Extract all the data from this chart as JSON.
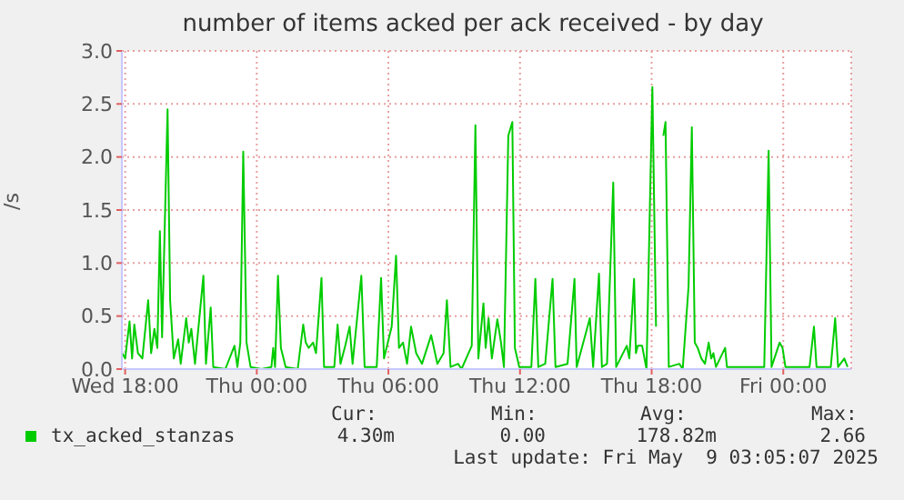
{
  "chart_data": {
    "type": "line",
    "title": "number of items acked per ack received - by day",
    "ylabel": "/s",
    "xlim": [
      "2025-05-07T17:51",
      "2025-05-09T03:06"
    ],
    "xticks": [
      {
        "value": "2025-05-07T18:00",
        "label": "Wed 18:00"
      },
      {
        "value": "2025-05-08T00:00",
        "label": "Thu 00:00"
      },
      {
        "value": "2025-05-08T06:00",
        "label": "Thu 06:00"
      },
      {
        "value": "2025-05-08T12:00",
        "label": "Thu 12:00"
      },
      {
        "value": "2025-05-08T18:00",
        "label": "Thu 18:00"
      },
      {
        "value": "2025-05-09T00:00",
        "label": "Fri 00:00"
      }
    ],
    "ylim": [
      0,
      3
    ],
    "yticks": [
      {
        "value": 0,
        "label": "0.0"
      },
      {
        "value": 0.5,
        "label": "0.5"
      },
      {
        "value": 1,
        "label": "1.0"
      },
      {
        "value": 1.5,
        "label": "1.5"
      },
      {
        "value": 2,
        "label": "2.0"
      },
      {
        "value": 2.5,
        "label": "2.5"
      },
      {
        "value": 3,
        "label": "3.0"
      }
    ],
    "grid": true,
    "legend": "bottom",
    "marker": "none",
    "line_style": "solid",
    "x": [
      "2025-05-07T17:52",
      "2025-05-07T18:00",
      "2025-05-07T18:12",
      "2025-05-07T18:19",
      "2025-05-07T18:25",
      "2025-05-07T18:35",
      "2025-05-07T18:47",
      "2025-05-07T19:03",
      "2025-05-07T19:11",
      "2025-05-07T19:20",
      "2025-05-07T19:28",
      "2025-05-07T19:35",
      "2025-05-07T19:41",
      "2025-05-07T19:56",
      "2025-05-07T20:03",
      "2025-05-07T20:13",
      "2025-05-07T20:25",
      "2025-05-07T20:32",
      "2025-05-07T20:47",
      "2025-05-07T20:54",
      "2025-05-07T21:01",
      "2025-05-07T21:11",
      "2025-05-07T21:34",
      "2025-05-07T21:41",
      "2025-05-07T21:54",
      "2025-05-07T22:01",
      "2025-05-07T22:34",
      "2025-05-07T22:59",
      "2025-05-07T23:07",
      "2025-05-07T23:15",
      "2025-05-07T23:23",
      "2025-05-07T23:32",
      "2025-05-07T23:43",
      "2025-05-08T00:13",
      "2025-05-08T00:40",
      "2025-05-08T00:45",
      "2025-05-08T00:50",
      "2025-05-08T00:58",
      "2025-05-08T01:06",
      "2025-05-08T01:19",
      "2025-05-08T01:52",
      "2025-05-08T02:07",
      "2025-05-08T02:14",
      "2025-05-08T02:22",
      "2025-05-08T02:34",
      "2025-05-08T02:42",
      "2025-05-08T02:57",
      "2025-05-08T03:04",
      "2025-05-08T03:32",
      "2025-05-08T03:41",
      "2025-05-08T03:49",
      "2025-05-08T04:02",
      "2025-05-08T04:14",
      "2025-05-08T04:22",
      "2025-05-08T04:46",
      "2025-05-08T04:55",
      "2025-05-08T05:28",
      "2025-05-08T05:40",
      "2025-05-08T05:48",
      "2025-05-08T06:09",
      "2025-05-08T06:21",
      "2025-05-08T06:29",
      "2025-05-08T06:40",
      "2025-05-08T06:51",
      "2025-05-08T07:02",
      "2025-05-08T07:16",
      "2025-05-08T07:32",
      "2025-05-08T07:57",
      "2025-05-08T08:14",
      "2025-05-08T08:31",
      "2025-05-08T08:40",
      "2025-05-08T08:50",
      "2025-05-08T09:11",
      "2025-05-08T09:20",
      "2025-05-08T09:48",
      "2025-05-08T09:58",
      "2025-05-08T10:06",
      "2025-05-08T10:20",
      "2025-05-08T10:26",
      "2025-05-08T10:34",
      "2025-05-08T10:43",
      "2025-05-08T10:58",
      "2025-05-08T11:08",
      "2025-05-08T11:16",
      "2025-05-08T11:28",
      "2025-05-08T11:39",
      "2025-05-08T11:46",
      "2025-05-08T11:58",
      "2025-05-08T12:31",
      "2025-05-08T12:42",
      "2025-05-08T12:50",
      "2025-05-08T13:09",
      "2025-05-08T13:29",
      "2025-05-08T13:37",
      "2025-05-08T14:10",
      "2025-05-08T14:29",
      "2025-05-08T14:35",
      "2025-05-08T15:11",
      "2025-05-08T15:20",
      "2025-05-08T15:36",
      "2025-05-08T15:44",
      "2025-05-08T15:58",
      "2025-05-08T16:15",
      "2025-05-08T16:23",
      "2025-05-08T16:52",
      "2025-05-08T16:59",
      "2025-05-08T17:12",
      "2025-05-08T17:17",
      "2025-05-08T17:22",
      "2025-05-08T17:34",
      "2025-05-08T17:46",
      "2025-05-08T18:02",
      "2025-05-08T18:12",
      "2025-05-08T18:21",
      "2025-05-08T18:32",
      "2025-05-08T18:38",
      "2025-05-08T18:47",
      "2025-05-08T19:16",
      "2025-05-08T19:25",
      "2025-05-08T19:41",
      "2025-05-08T19:50",
      "2025-05-08T19:58",
      "2025-05-08T20:06",
      "2025-05-08T20:16",
      "2025-05-08T20:26",
      "2025-05-08T20:36",
      "2025-05-08T20:43",
      "2025-05-08T20:49",
      "2025-05-08T20:56",
      "2025-05-08T21:21",
      "2025-05-08T21:26",
      "2025-05-08T23:08",
      "2025-05-08T23:20",
      "2025-05-08T23:28",
      "2025-05-08T23:50",
      "2025-05-08T23:58",
      "2025-05-09T00:06",
      "2025-05-09T01:12",
      "2025-05-09T01:24",
      "2025-05-09T01:31",
      "2025-05-09T02:10",
      "2025-05-09T02:22",
      "2025-05-09T02:30",
      "2025-05-09T02:47",
      "2025-05-09T02:56"
    ],
    "series": [
      {
        "name": "tx_acked_stanzas",
        "color": "#00cc00",
        "values": [
          0.15,
          0.1,
          0.45,
          0.1,
          0.42,
          0.15,
          0.1,
          0.65,
          0.15,
          0.38,
          0.2,
          1.3,
          0.3,
          2.45,
          0.65,
          0.1,
          0.28,
          0.05,
          0.48,
          0.25,
          0.38,
          0.05,
          0.88,
          0.05,
          0.58,
          0.02,
          0.0,
          0.22,
          0.02,
          0.25,
          2.05,
          0.25,
          0.02,
          0.0,
          0.02,
          0.2,
          0.02,
          0.88,
          0.2,
          0.02,
          0.0,
          0.42,
          0.25,
          0.2,
          0.25,
          0.15,
          0.86,
          0.02,
          0.02,
          0.42,
          0.05,
          0.22,
          0.4,
          0.05,
          0.88,
          0.02,
          0.02,
          0.86,
          0.1,
          0.4,
          1.07,
          0.2,
          0.25,
          0.05,
          0.4,
          0.15,
          0.05,
          0.32,
          0.05,
          0.15,
          0.65,
          0.02,
          0.05,
          0.0,
          0.22,
          2.3,
          0.1,
          0.62,
          0.2,
          0.48,
          0.1,
          0.47,
          0.25,
          0.02,
          2.2,
          2.33,
          0.2,
          0.02,
          0.02,
          0.85,
          0.02,
          0.05,
          0.85,
          0.02,
          0.05,
          0.85,
          0.02,
          0.48,
          0.02,
          0.9,
          0.02,
          0.05,
          1.76,
          0.02,
          0.22,
          0.1,
          0.85,
          0.15,
          0.22,
          0.22,
          0.0,
          2.66,
          0.4,
          null,
          2.2,
          2.33,
          0.02,
          0.05,
          0.0,
          0.78,
          2.28,
          0.25,
          0.2,
          0.1,
          0.05,
          0.25,
          0.1,
          0.15,
          0.02,
          0.2,
          0.02,
          0.02,
          2.06,
          0.02,
          0.25,
          0.2,
          0.02,
          0.02,
          0.4,
          0.02,
          0.02,
          0.48,
          0.02,
          0.1,
          0.02
        ]
      }
    ],
    "annotations": [
      "Cur:",
      "Min:",
      "Avg:",
      "Max:",
      "4.30m",
      "0.00",
      "178.82m",
      "2.66",
      "Last update: Fri May  9 03:05:07 2025"
    ]
  }
}
